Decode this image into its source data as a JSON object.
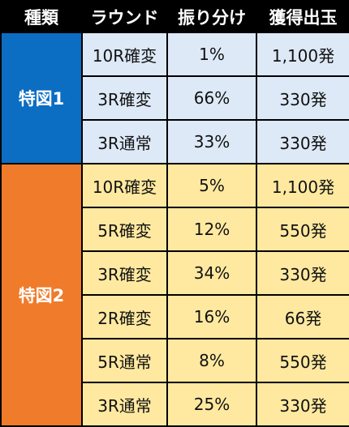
{
  "headers": [
    "種類",
    "ラウンド",
    "振り分け",
    "獲得出玉"
  ],
  "groups": [
    {
      "label": "特図1",
      "rows": [
        {
          "round": "10R確変",
          "ratio": "1%",
          "payout": "1,100発"
        },
        {
          "round": "3R確変",
          "ratio": "66%",
          "payout": "330発"
        },
        {
          "round": "3R通常",
          "ratio": "33%",
          "payout": "330発"
        }
      ]
    },
    {
      "label": "特図2",
      "rows": [
        {
          "round": "10R確変",
          "ratio": "5%",
          "payout": "1,100発"
        },
        {
          "round": "5R確変",
          "ratio": "12%",
          "payout": "550発"
        },
        {
          "round": "3R確変",
          "ratio": "34%",
          "payout": "330発"
        },
        {
          "round": "2R確変",
          "ratio": "16%",
          "payout": "66発"
        },
        {
          "round": "5R通常",
          "ratio": "8%",
          "payout": "550発"
        },
        {
          "round": "3R通常",
          "ratio": "25%",
          "payout": "330発"
        }
      ]
    }
  ],
  "colors": {
    "header_bg": "#000000",
    "group1_bg": "#0b6ec3",
    "group1_row_bg": "#dde9f7",
    "group2_bg": "#f07b2a",
    "group2_row_bg": "#ffe9a0"
  }
}
